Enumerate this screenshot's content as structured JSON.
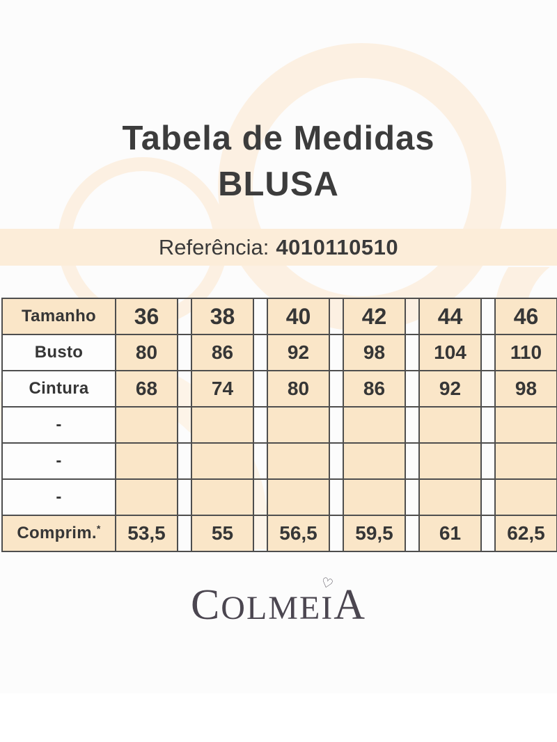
{
  "header": {
    "title_line1": "Tabela de Medidas",
    "title_line2": "BLUSA"
  },
  "reference": {
    "label": "Referência:",
    "value": "4010110510"
  },
  "size_table": {
    "corner_label": "Tamanho",
    "sizes": [
      "36",
      "38",
      "40",
      "42",
      "44",
      "46"
    ],
    "rows": [
      {
        "label": "Busto",
        "highlight": false,
        "values": [
          "80",
          "86",
          "92",
          "98",
          "104",
          "110"
        ]
      },
      {
        "label": "Cintura",
        "highlight": false,
        "values": [
          "68",
          "74",
          "80",
          "86",
          "92",
          "98"
        ]
      },
      {
        "label": "-",
        "highlight": false,
        "values": [
          "",
          "",
          "",
          "",
          "",
          ""
        ]
      },
      {
        "label": "-",
        "highlight": false,
        "values": [
          "",
          "",
          "",
          "",
          "",
          ""
        ]
      },
      {
        "label": "-",
        "highlight": false,
        "values": [
          "",
          "",
          "",
          "",
          "",
          ""
        ]
      },
      {
        "label": "Comprim.",
        "label_suffix": "*",
        "highlight": true,
        "values": [
          "53,5",
          "55",
          "56,5",
          "59,5",
          "61",
          "62,5"
        ]
      }
    ]
  },
  "brand": {
    "letter_first": "C",
    "letters_mid": "OLME",
    "letter_i": "I",
    "letter_last": "A",
    "heart": "♡"
  },
  "colors": {
    "cell_peach": "#fae6c8",
    "banner_peach": "#fcedd9",
    "ring_peach": "#fcf0e2",
    "border_dark": "#4e4e4e",
    "text_dark": "#3c3c3c"
  }
}
